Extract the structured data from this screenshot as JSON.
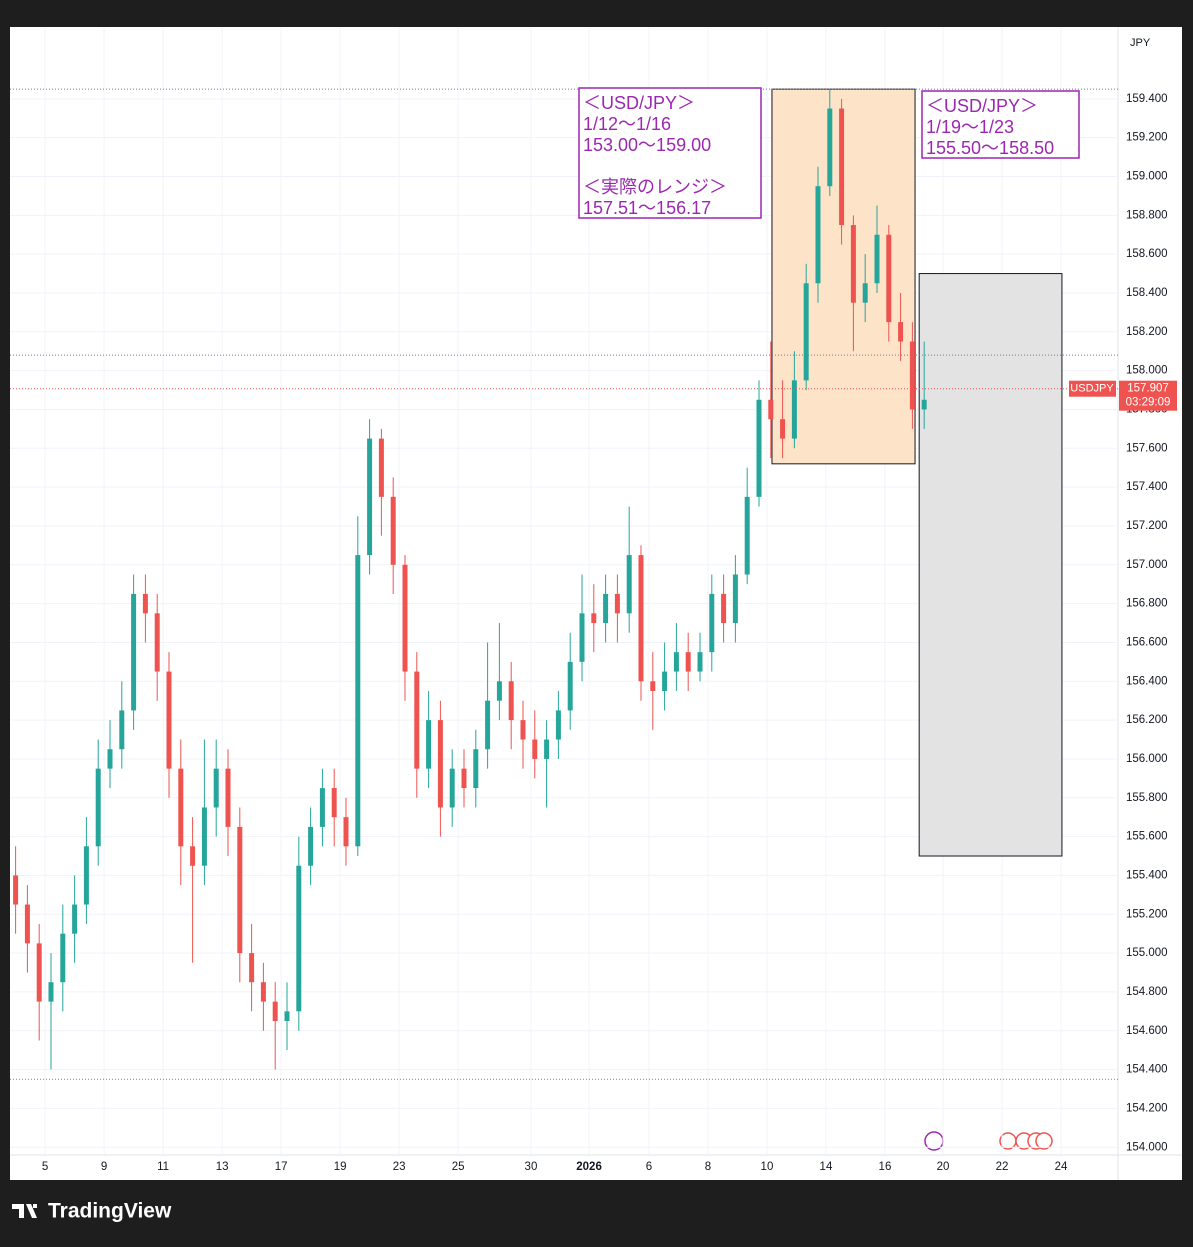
{
  "chart_data": {
    "type": "candlestick",
    "symbol": "USDJPY",
    "currency": "JPY",
    "last_price": {
      "value": 157.907,
      "label": "157.907"
    },
    "countdown": "03:29:09",
    "brand": "TradingView",
    "x": [
      -1.0,
      -0.6,
      -0.2,
      0.2,
      0.6,
      1.0,
      1.4,
      1.8,
      2.2,
      2.6,
      3.0,
      3.4,
      3.8,
      4.2,
      4.6,
      5.0,
      5.4,
      5.8,
      6.2,
      6.6,
      7.0,
      7.4,
      7.8,
      8.2,
      8.6,
      9.0,
      9.4,
      9.8,
      10.2,
      10.6,
      11.0,
      11.4,
      11.8,
      12.2,
      12.6,
      13.0,
      13.4,
      13.8,
      14.2,
      14.6,
      15.0,
      15.4,
      15.8,
      16.2,
      16.6,
      17.0,
      17.4,
      17.8,
      18.2,
      18.6,
      19.0,
      19.4,
      19.8,
      20.2,
      20.6,
      21.0,
      21.4,
      21.8,
      22.2,
      22.6,
      23.0,
      23.4,
      23.8,
      24.2,
      24.6,
      25.0,
      25.4,
      25.8,
      26.2,
      26.6,
      27.0,
      27.4,
      27.8,
      28.2,
      28.6,
      29.0,
      29.4,
      29.8
    ],
    "open": [
      155.4,
      155.25,
      155.05,
      154.75,
      154.85,
      155.1,
      155.25,
      155.55,
      155.95,
      156.05,
      156.25,
      156.85,
      156.75,
      156.45,
      155.95,
      155.55,
      155.45,
      155.75,
      155.95,
      155.65,
      155.0,
      154.85,
      154.75,
      154.65,
      154.7,
      155.45,
      155.65,
      155.85,
      155.7,
      155.55,
      157.05,
      157.65,
      157.35,
      157.0,
      156.45,
      155.95,
      156.2,
      155.75,
      155.95,
      155.85,
      156.05,
      156.3,
      156.4,
      156.2,
      156.1,
      156.0,
      156.1,
      156.25,
      156.5,
      156.75,
      156.7,
      156.85,
      156.75,
      157.05,
      156.4,
      156.35,
      156.45,
      156.55,
      156.45,
      156.55,
      156.85,
      156.7,
      156.95,
      157.35,
      157.85,
      157.75,
      157.65,
      157.95,
      158.45,
      158.95,
      159.35,
      158.75,
      158.35,
      158.45,
      158.7,
      158.25,
      158.15,
      157.8
    ],
    "high": [
      155.55,
      155.35,
      155.15,
      155.0,
      155.25,
      155.4,
      155.7,
      156.1,
      156.2,
      156.4,
      156.95,
      156.95,
      156.85,
      156.55,
      156.1,
      155.7,
      156.1,
      156.1,
      156.05,
      155.75,
      155.15,
      154.95,
      154.85,
      154.85,
      155.6,
      155.75,
      155.95,
      155.95,
      155.8,
      157.25,
      157.75,
      157.7,
      157.45,
      157.05,
      156.55,
      156.35,
      156.3,
      156.05,
      156.05,
      156.15,
      156.6,
      156.7,
      156.5,
      156.3,
      156.25,
      156.2,
      156.35,
      156.65,
      156.95,
      156.9,
      156.95,
      156.95,
      157.3,
      157.1,
      156.55,
      156.6,
      156.7,
      156.65,
      156.65,
      156.95,
      156.95,
      157.05,
      157.5,
      157.95,
      158.15,
      157.95,
      158.1,
      158.55,
      159.05,
      159.45,
      159.4,
      158.8,
      158.6,
      158.85,
      158.75,
      158.4,
      158.25,
      158.15
    ],
    "low": [
      155.1,
      154.9,
      154.55,
      154.4,
      154.7,
      154.95,
      155.15,
      155.45,
      155.85,
      155.95,
      156.15,
      156.6,
      156.3,
      155.8,
      155.35,
      154.95,
      155.35,
      155.6,
      155.5,
      154.85,
      154.7,
      154.6,
      154.4,
      154.5,
      154.6,
      155.35,
      155.55,
      155.55,
      155.45,
      155.5,
      156.95,
      157.15,
      156.85,
      156.3,
      155.8,
      155.85,
      155.6,
      155.65,
      155.75,
      155.75,
      155.95,
      156.2,
      156.05,
      155.95,
      155.9,
      155.75,
      156.0,
      156.15,
      156.4,
      156.55,
      156.6,
      156.6,
      156.65,
      156.3,
      156.15,
      156.25,
      156.35,
      156.35,
      156.4,
      156.45,
      156.6,
      156.6,
      156.9,
      157.3,
      157.55,
      157.55,
      157.6,
      157.9,
      158.35,
      158.9,
      158.65,
      158.1,
      158.25,
      158.4,
      158.15,
      158.05,
      157.7,
      157.7
    ],
    "close": [
      155.25,
      155.05,
      154.75,
      154.85,
      155.1,
      155.25,
      155.55,
      155.95,
      156.05,
      156.25,
      156.85,
      156.75,
      156.45,
      155.95,
      155.55,
      155.45,
      155.75,
      155.95,
      155.65,
      155.0,
      154.85,
      154.75,
      154.65,
      154.7,
      155.45,
      155.65,
      155.85,
      155.7,
      155.55,
      157.05,
      157.65,
      157.35,
      157.0,
      156.45,
      155.95,
      156.2,
      155.75,
      155.95,
      155.85,
      156.05,
      156.3,
      156.4,
      156.2,
      156.1,
      156.0,
      156.1,
      156.25,
      156.5,
      156.75,
      156.7,
      156.85,
      156.75,
      157.05,
      156.4,
      156.35,
      156.45,
      156.55,
      156.45,
      156.55,
      156.85,
      156.7,
      156.95,
      157.35,
      157.85,
      157.75,
      157.65,
      157.95,
      158.45,
      158.95,
      159.35,
      158.75,
      158.35,
      158.45,
      158.7,
      158.25,
      158.15,
      157.8,
      157.85
    ],
    "up_color": "#26a69a",
    "down_color": "#ef5350",
    "xlim": [
      -1.19,
      36.37
    ],
    "xticks": [
      {
        "value": 0,
        "label": "5"
      },
      {
        "value": 2,
        "label": "9"
      },
      {
        "value": 4,
        "label": "11"
      },
      {
        "value": 6,
        "label": "13"
      },
      {
        "value": 8,
        "label": "17"
      },
      {
        "value": 10,
        "label": "19"
      },
      {
        "value": 12,
        "label": "23"
      },
      {
        "value": 14,
        "label": "25"
      },
      {
        "value": 16.47,
        "label": "30"
      },
      {
        "value": 18.44,
        "label": "2026"
      },
      {
        "value": 20.47,
        "label": "6"
      },
      {
        "value": 22.47,
        "label": "8"
      },
      {
        "value": 24.47,
        "label": "10"
      },
      {
        "value": 26.47,
        "label": "14"
      },
      {
        "value": 28.47,
        "label": "16"
      },
      {
        "value": 30.44,
        "label": "20"
      },
      {
        "value": 32.44,
        "label": "22"
      },
      {
        "value": 34.44,
        "label": "24"
      }
    ],
    "ylim": [
      153.96,
      159.77
    ],
    "yticks": [
      {
        "value": 154,
        "label": "154.000"
      },
      {
        "value": 154.2,
        "label": "154.200"
      },
      {
        "value": 154.4,
        "label": "154.400"
      },
      {
        "value": 154.6,
        "label": "154.600"
      },
      {
        "value": 154.8,
        "label": "154.800"
      },
      {
        "value": 155,
        "label": "155.000"
      },
      {
        "value": 155.2,
        "label": "155.200"
      },
      {
        "value": 155.4,
        "label": "155.400"
      },
      {
        "value": 155.6,
        "label": "155.600"
      },
      {
        "value": 155.8,
        "label": "155.800"
      },
      {
        "value": 156,
        "label": "156.000"
      },
      {
        "value": 156.2,
        "label": "156.200"
      },
      {
        "value": 156.4,
        "label": "156.400"
      },
      {
        "value": 156.6,
        "label": "156.600"
      },
      {
        "value": 156.8,
        "label": "156.800"
      },
      {
        "value": 157,
        "label": "157.000"
      },
      {
        "value": 157.2,
        "label": "157.200"
      },
      {
        "value": 157.4,
        "label": "157.400"
      },
      {
        "value": 157.6,
        "label": "157.600"
      },
      {
        "value": 157.8,
        "label": "157.800"
      },
      {
        "value": 158,
        "label": "158.000"
      },
      {
        "value": 158.2,
        "label": "158.200"
      },
      {
        "value": 158.4,
        "label": "158.400"
      },
      {
        "value": 158.6,
        "label": "158.600"
      },
      {
        "value": 158.8,
        "label": "158.800"
      },
      {
        "value": 159,
        "label": "159.000"
      },
      {
        "value": 159.2,
        "label": "159.200"
      },
      {
        "value": 159.4,
        "label": "159.400"
      }
    ],
    "grid": true,
    "hlines": [
      159.45,
      158.08,
      154.35
    ],
    "boxes": [
      {
        "x": [
          24.64,
          29.49
        ],
        "y": [
          157.52,
          159.45
        ],
        "color": "#fde3c8"
      },
      {
        "x": [
          29.63,
          34.47
        ],
        "y": [
          155.5,
          158.5
        ],
        "color": "#e3e3e3"
      }
    ],
    "annotations": [
      {
        "lines": [
          "＜USD/JPY＞",
          "1/12～1/16",
          "153.00～159.00",
          "＜実際のレンジ＞",
          "157.51～156.17"
        ]
      },
      {
        "lines": [
          "＜USD/JPY＞",
          "1/19～1/23",
          "155.50～158.50"
        ]
      }
    ]
  }
}
